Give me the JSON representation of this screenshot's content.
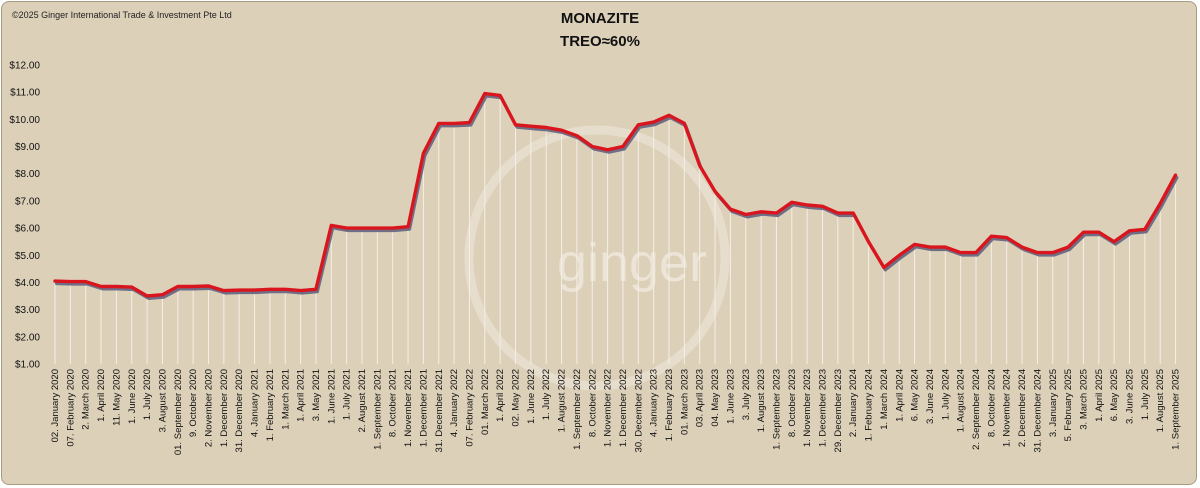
{
  "copyright": "©2025 Ginger International Trade & Investment Pte Ltd",
  "watermark": "ginger",
  "colors": {
    "background": "#ddd0b9",
    "line": "#d9161d",
    "shadow": "#6e6e86",
    "droplines": "#f4efe6"
  },
  "chart_data": {
    "type": "line",
    "title": "MONAZITE",
    "subtitle": "TREO≈60%",
    "xlabel": "",
    "ylabel": "",
    "ylim": [
      1,
      12
    ],
    "yticks": [
      "$1.00",
      "$2.00",
      "$3.00",
      "$4.00",
      "$5.00",
      "$6.00",
      "$7.00",
      "$8.00",
      "$9.00",
      "$10.00",
      "$11.00",
      "$12.00"
    ],
    "grid": false,
    "categories": [
      "02. January 2020",
      "07. February 2020",
      "2. March 2020",
      "1. April 2020",
      "11. May 2020",
      "1. June 2020",
      "1. July 2020",
      "3. August 2020",
      "01. September 2020",
      "9. October 2020",
      "2. November 2020",
      "1. December 2020",
      "31. December 2020",
      "4. January 2021",
      "1. February 2021",
      "1. March 2021",
      "1. April 2021",
      "3. May 2021",
      "1. June 2021",
      "1. July 2021",
      "2. August 2021",
      "1. September 2021",
      "8. October 2021",
      "1. November 2021",
      "1. December 2021",
      "31. December 2021",
      "4. January 2022",
      "07. February 2022",
      "01. March 2022",
      "1. April 2022",
      "02. May 2022",
      "1. June 2022",
      "1. July 2022",
      "1. August 2022",
      "1. September 2022",
      "8. October 2022",
      "1. November 2022",
      "1. December 2022",
      "30. December 2022",
      "4. January 2023",
      "1. February 2023",
      "01. March 2023",
      "03. April 2023",
      "04. May 2023",
      "1. June 2023",
      "3. July 2023",
      "1. August 2023",
      "1. September 2023",
      "8. October 2023",
      "1. November 2023",
      "1. December 2023",
      "29. December 2023",
      "2. January 2024",
      "1. February 2024",
      "1. March 2024",
      "1. April 2024",
      "6. May 2024",
      "3. June 2024",
      "1. July 2024",
      "1. August 2024",
      "2. September 2024",
      "8. October 2024",
      "1. November 2024",
      "2. December 2024",
      "31. December 2024",
      "3. January 2025",
      "5. February 2025",
      "3. March 2025",
      "1. April 2025",
      "6. May 2025",
      "3. June 2025",
      "1. July 2025",
      "1. August 2025",
      "1. September 2025"
    ],
    "series": [
      {
        "values": [
          4.05,
          4.03,
          4.03,
          3.85,
          3.85,
          3.83,
          3.5,
          3.55,
          3.85,
          3.85,
          3.87,
          3.7,
          3.72,
          3.72,
          3.75,
          3.75,
          3.7,
          3.75,
          6.1,
          6.0,
          6.0,
          6.0,
          6.0,
          6.05,
          8.75,
          9.85,
          9.85,
          9.88,
          10.95,
          10.88,
          9.8,
          9.75,
          9.7,
          9.6,
          9.4,
          9.0,
          8.88,
          9.0,
          9.8,
          9.9,
          10.15,
          9.85,
          8.3,
          7.35,
          6.7,
          6.5,
          6.6,
          6.55,
          6.95,
          6.85,
          6.8,
          6.55,
          6.55,
          5.5,
          4.55,
          5.0,
          5.4,
          5.3,
          5.3,
          5.1,
          5.1,
          5.7,
          5.65,
          5.3,
          5.1,
          5.1,
          5.3,
          5.85,
          5.85,
          5.5,
          5.9,
          5.95,
          6.9,
          7.95
        ]
      }
    ]
  }
}
